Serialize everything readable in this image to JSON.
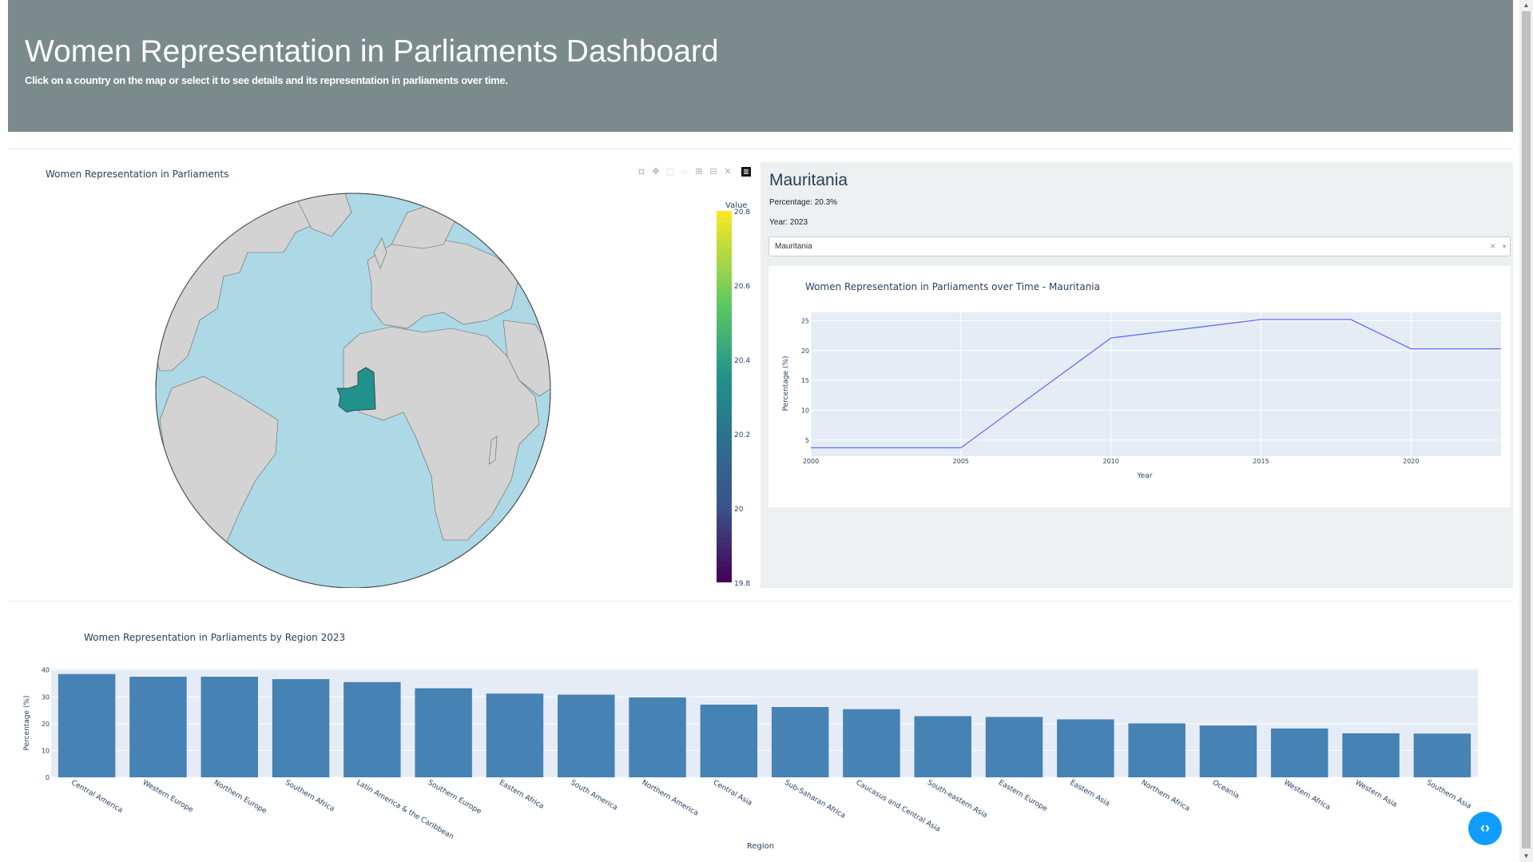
{
  "header": {
    "title": "Women Representation in Parliaments Dashboard",
    "subtitle": "Click on a country on the map or select it to see details and its representation in parliaments over time."
  },
  "map": {
    "title": "Women Representation in Parliaments",
    "colorbar_title": "Value",
    "colorbar_ticks": [
      "20.8",
      "20.6",
      "20.4",
      "20.2",
      "20",
      "19.8"
    ],
    "highlighted_country": "Mauritania",
    "highlight_color": "#21918c",
    "ocean_color": "#add8e6",
    "land_color": "#d3d3d3",
    "modebar_icons": [
      "camera-icon",
      "pan-icon",
      "box-select-icon",
      "lasso-icon",
      "zoom-in-icon",
      "zoom-out-icon",
      "reset-icon",
      "plotly-logo-icon"
    ]
  },
  "details": {
    "country": "Mauritania",
    "percentage_label": "Percentage: 20.3%",
    "year_label": "Year: 2023",
    "dropdown_value": "Mauritania",
    "dropdown_clear": "×",
    "dropdown_arrow": "▾"
  },
  "line_chart": {
    "title": "Women Representation in Parliaments over Time - Mauritania",
    "xlabel": "Year",
    "ylabel": "Percentage (%)"
  },
  "bar_chart": {
    "title": "Women Representation in Parliaments by Region 2023",
    "xlabel": "Region",
    "ylabel": "Percentage (%)"
  },
  "fab": {
    "label": "‹›"
  },
  "chart_data": [
    {
      "type": "line",
      "title": "Women Representation in Parliaments over Time - Mauritania",
      "xlabel": "Year",
      "ylabel": "Percentage (%)",
      "x": [
        2000,
        2005,
        2010,
        2015,
        2018,
        2020,
        2023
      ],
      "y": [
        3.7,
        3.7,
        22.1,
        25.2,
        25.2,
        20.3,
        20.3
      ],
      "xlim": [
        2000,
        2023
      ],
      "ylim": [
        2.3,
        26.4
      ],
      "xticks": [
        2000,
        2005,
        2010,
        2015,
        2020
      ],
      "yticks": [
        5,
        10,
        15,
        20,
        25
      ],
      "color": "#636efa",
      "grid": true
    },
    {
      "type": "bar",
      "title": "Women Representation in Parliaments by Region 2023",
      "xlabel": "Region",
      "ylabel": "Percentage (%)",
      "categories": [
        "Central America",
        "Western Europe",
        "Northern Europe",
        "Southern Africa",
        "Latin America & the Caribbean",
        "Southern Europe",
        "Eastern Africa",
        "South America",
        "Northern America",
        "Central Asia",
        "Sub-Saharan Africa",
        "Caucasus and Central Asia",
        "South-eastern Asia",
        "Eastern Europe",
        "Eastern Asia",
        "Northern Africa",
        "Oceania",
        "Western Africa",
        "Western Asia",
        "Southern Asia"
      ],
      "values": [
        38.5,
        37.5,
        37.5,
        36.6,
        35.5,
        33.2,
        31.2,
        30.8,
        29.8,
        27.1,
        26.2,
        25.4,
        22.8,
        22.5,
        21.6,
        20.1,
        19.3,
        18.2,
        16.4,
        16.3
      ],
      "ylim": [
        0,
        40.5
      ],
      "yticks": [
        0,
        10,
        20,
        30,
        40
      ],
      "color": "#4682b4",
      "grid": true
    }
  ]
}
